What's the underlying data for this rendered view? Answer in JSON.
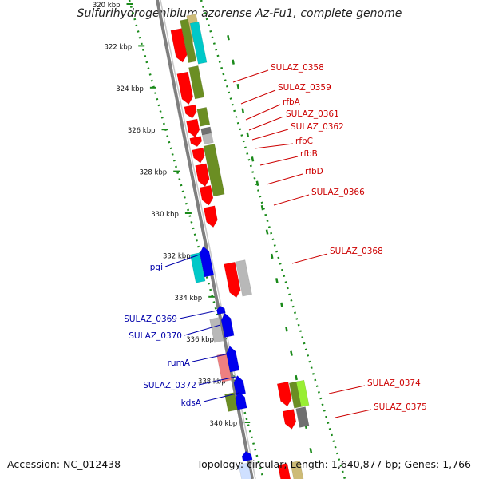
{
  "title": "Sulfurihydrogenibium azorense Az-Fu1, complete genome",
  "accession_text": "Accession: NC_012438",
  "summary_text": "Topology: circular; Length: 1,640,877 bp; Genes: 1,766",
  "colors": {
    "backbone": "#7f7f7f",
    "ruler": "#1a8a1a",
    "label_right": "#cc0000",
    "label_left": "#0000aa",
    "red": "#ff0000",
    "olive": "#6b8e23",
    "cyan": "#00c8c8",
    "blue": "#0000ee",
    "gray": "#b8b8b8",
    "darkgray": "#707070",
    "pink": "#ee8080",
    "lime": "#99ee33",
    "tan": "#cdbb77",
    "lightblue": "#cfe0ff"
  },
  "ruler_ticks": [
    {
      "label": "320 kbp",
      "kbp": 320
    },
    {
      "label": "322 kbp",
      "kbp": 322
    },
    {
      "label": "324 kbp",
      "kbp": 324
    },
    {
      "label": "326 kbp",
      "kbp": 326
    },
    {
      "label": "328 kbp",
      "kbp": 328
    },
    {
      "label": "330 kbp",
      "kbp": 330
    },
    {
      "label": "332 kbp",
      "kbp": 332
    },
    {
      "label": "334 kbp",
      "kbp": 334
    },
    {
      "label": "336 kbp",
      "kbp": 336
    },
    {
      "label": "338 kbp",
      "kbp": 338
    },
    {
      "label": "340 kbp",
      "kbp": 340
    }
  ],
  "gene_labels_right": [
    "SULAZ_0358",
    "SULAZ_0359",
    "rfbA",
    "SULAZ_0361",
    "SULAZ_0362",
    "rfbC",
    "rfbB",
    "rfbD",
    "SULAZ_0366",
    "SULAZ_0368",
    "SULAZ_0374",
    "SULAZ_0375"
  ],
  "gene_labels_left": [
    "pgi",
    "SULAZ_0369",
    "SULAZ_0370",
    "rumA",
    "SULAZ_0372",
    "kdsA"
  ]
}
